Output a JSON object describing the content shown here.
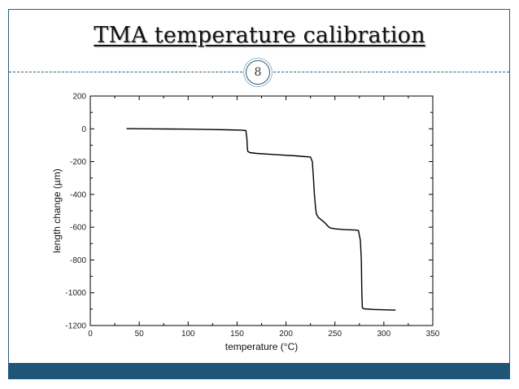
{
  "slide": {
    "title": "TMA temperature calibration",
    "page_number": "8"
  },
  "chart_data": {
    "type": "line",
    "title": "",
    "xlabel": "temperature (°C)",
    "ylabel": "length change (µm)",
    "xlim": [
      0,
      350
    ],
    "ylim": [
      -1200,
      200
    ],
    "x_ticks": [
      0,
      50,
      100,
      150,
      200,
      250,
      300,
      350
    ],
    "y_ticks": [
      -1200,
      -1000,
      -800,
      -600,
      -400,
      -200,
      0,
      200
    ],
    "grid": false,
    "legend": "none",
    "series": [
      {
        "color": "#000000",
        "x": [
          37,
          60,
          80,
          100,
          120,
          140,
          155,
          159,
          160,
          160.5,
          161,
          163,
          170,
          190,
          210,
          220,
          225,
          227,
          228,
          229,
          230,
          231,
          232,
          233,
          236,
          240,
          243,
          245,
          250,
          260,
          270,
          274,
          275,
          276,
          277,
          277.5,
          278,
          280,
          290,
          300,
          312
        ],
        "y": [
          1,
          0,
          -1,
          -2,
          -4,
          -6,
          -8,
          -11,
          -60,
          -120,
          -138,
          -145,
          -150,
          -158,
          -165,
          -170,
          -172,
          -200,
          -300,
          -400,
          -470,
          -520,
          -530,
          -540,
          -555,
          -575,
          -595,
          -605,
          -610,
          -615,
          -617,
          -620,
          -650,
          -680,
          -800,
          -1000,
          -1092,
          -1098,
          -1102,
          -1104,
          -1106
        ]
      }
    ]
  }
}
